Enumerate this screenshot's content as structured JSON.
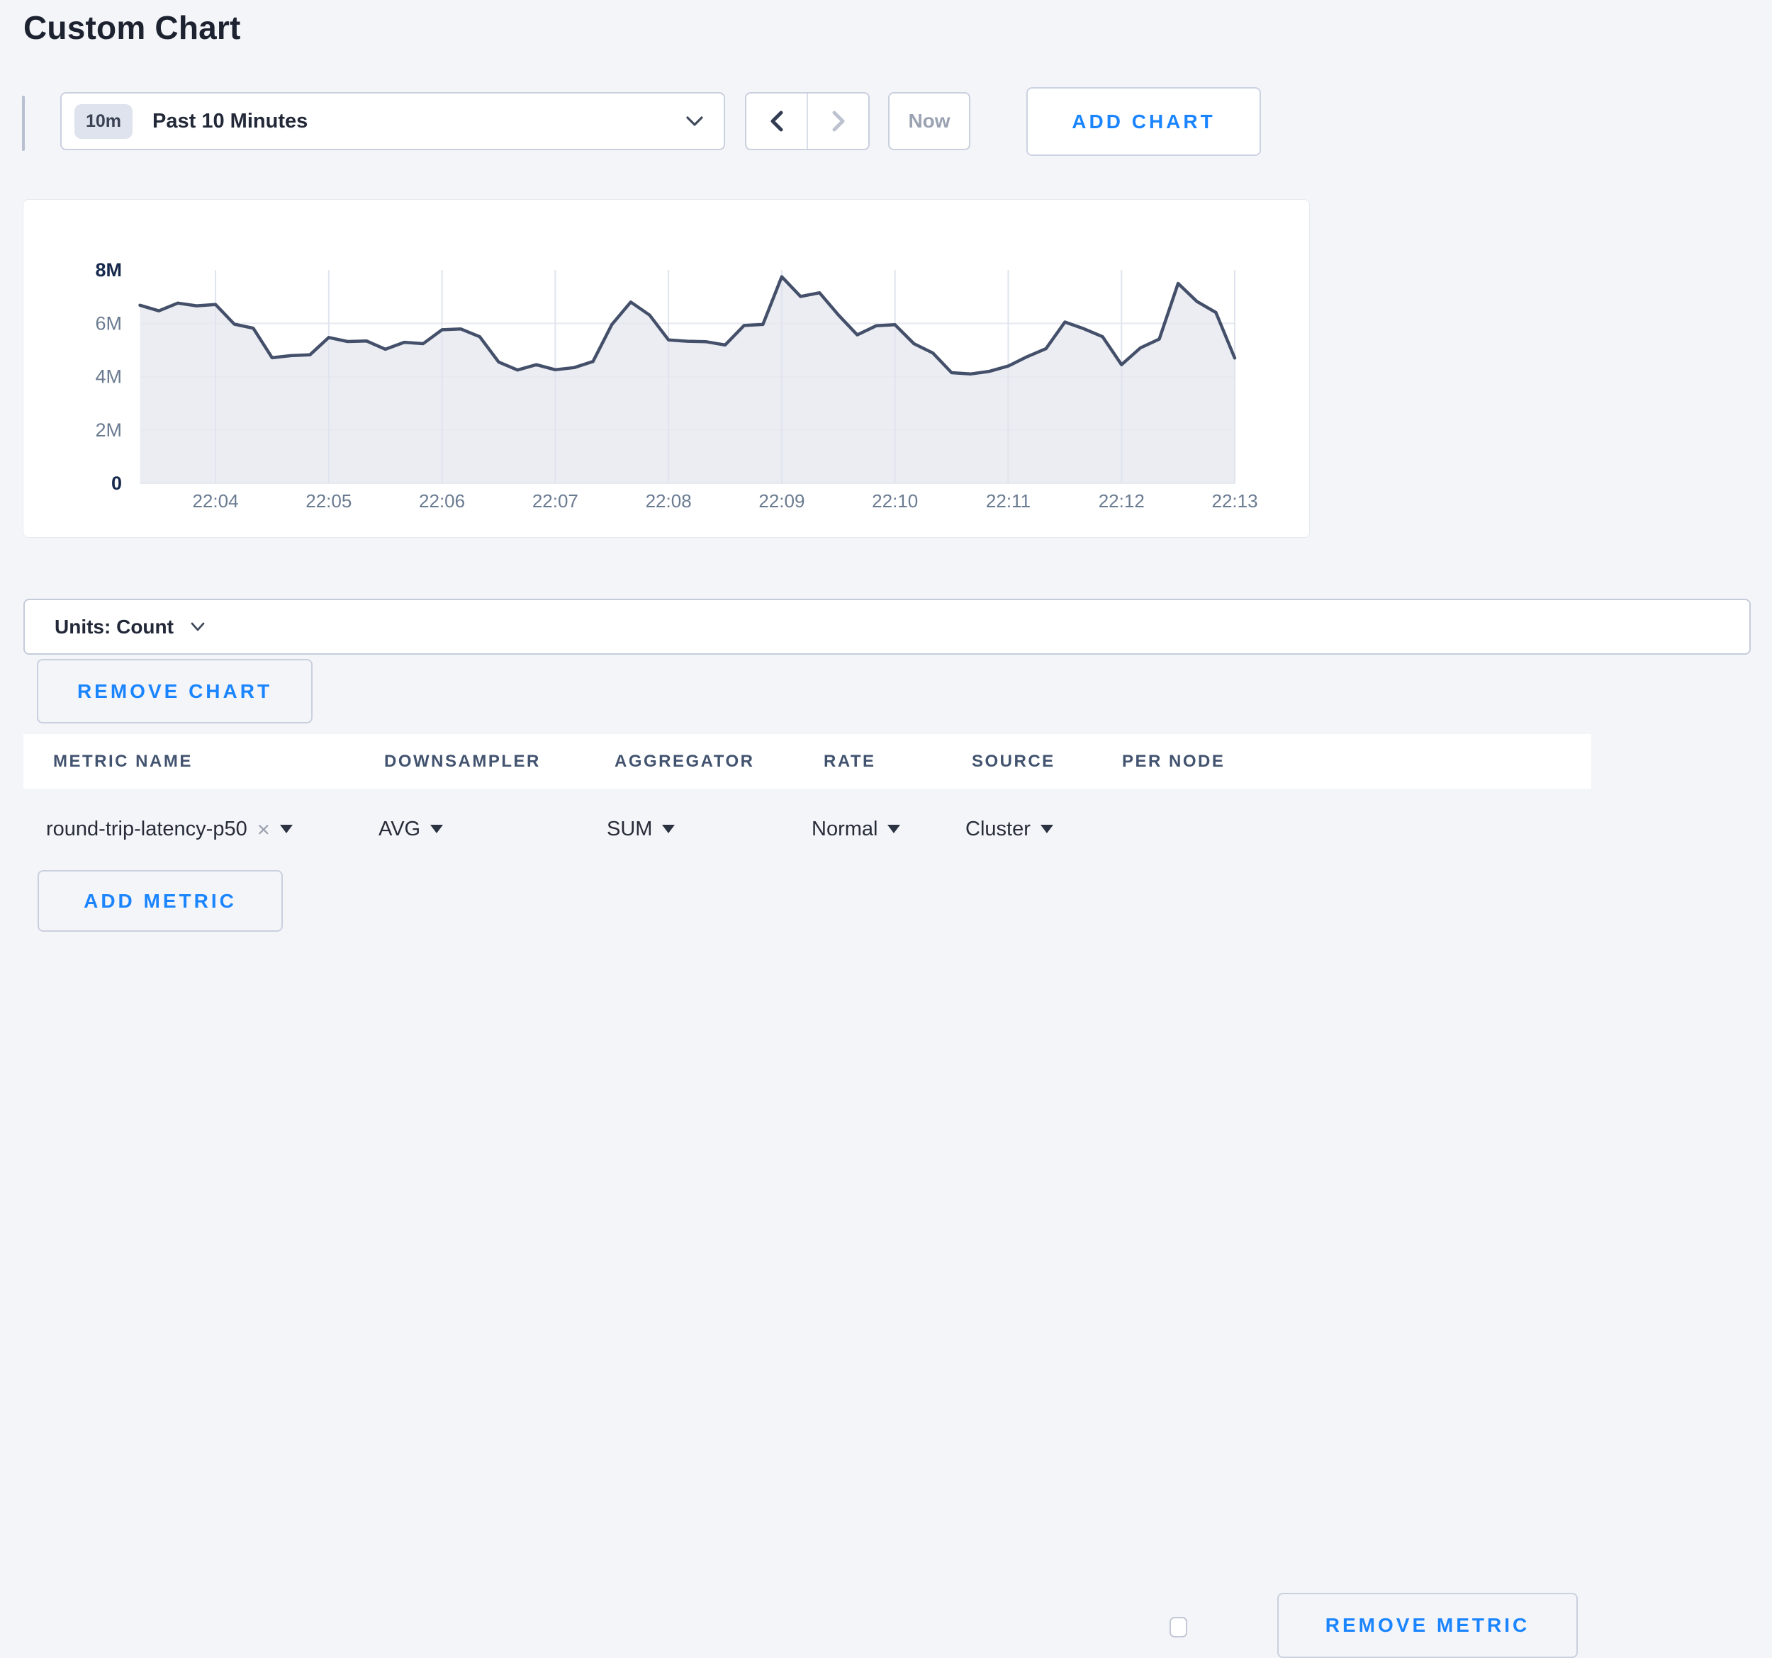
{
  "page": {
    "title": "Custom Chart",
    "background": "#f4f5f9"
  },
  "toolbar": {
    "time_badge": "10m",
    "time_label": "Past 10 Minutes",
    "now_label": "Now",
    "add_chart_label": "ADD CHART"
  },
  "chart_data": {
    "type": "area",
    "title": "",
    "unit": "count",
    "x": [
      "22:03:20",
      "22:03:30",
      "22:03:40",
      "22:03:50",
      "22:04:00",
      "22:04:10",
      "22:04:20",
      "22:04:30",
      "22:04:40",
      "22:04:50",
      "22:05:00",
      "22:05:10",
      "22:05:20",
      "22:05:30",
      "22:05:40",
      "22:05:50",
      "22:06:00",
      "22:06:10",
      "22:06:20",
      "22:06:30",
      "22:06:40",
      "22:06:50",
      "22:07:00",
      "22:07:10",
      "22:07:20",
      "22:07:30",
      "22:07:40",
      "22:07:50",
      "22:08:00",
      "22:08:10",
      "22:08:20",
      "22:08:30",
      "22:08:40",
      "22:08:50",
      "22:09:00",
      "22:09:10",
      "22:09:20",
      "22:09:30",
      "22:09:40",
      "22:09:50",
      "22:10:00",
      "22:10:10",
      "22:10:20",
      "22:10:30",
      "22:10:40",
      "22:10:50",
      "22:11:00",
      "22:11:10",
      "22:11:20",
      "22:11:30",
      "22:11:40",
      "22:11:50",
      "22:12:00",
      "22:12:10",
      "22:12:20",
      "22:12:30",
      "22:12:40",
      "22:12:50",
      "22:13:00"
    ],
    "values_millions": [
      6.68,
      6.47,
      6.76,
      6.66,
      6.71,
      5.97,
      5.82,
      4.71,
      4.79,
      4.82,
      5.47,
      5.32,
      5.34,
      5.03,
      5.29,
      5.24,
      5.76,
      5.79,
      5.5,
      4.55,
      4.25,
      4.45,
      4.26,
      4.34,
      4.57,
      5.96,
      6.8,
      6.31,
      5.38,
      5.33,
      5.31,
      5.19,
      5.92,
      5.96,
      7.75,
      7.01,
      7.15,
      6.32,
      5.57,
      5.91,
      5.95,
      5.24,
      4.89,
      4.15,
      4.1,
      4.2,
      4.4,
      4.75,
      5.05,
      6.05,
      5.8,
      5.5,
      4.45,
      5.08,
      5.41,
      7.5,
      6.82,
      6.41,
      4.7
    ],
    "x_tick_labels": [
      "22:04",
      "22:05",
      "22:06",
      "22:07",
      "22:08",
      "22:09",
      "22:10",
      "22:11",
      "22:12",
      "22:13"
    ],
    "y_ticks": [
      {
        "label": "0",
        "value": 0,
        "bold": true
      },
      {
        "label": "2M",
        "value": 2,
        "bold": false
      },
      {
        "label": "4M",
        "value": 4,
        "bold": false
      },
      {
        "label": "6M",
        "value": 6,
        "bold": false
      },
      {
        "label": "8M",
        "value": 8,
        "bold": true
      }
    ],
    "ylim_millions": [
      0,
      8
    ],
    "grid": true,
    "legend": "none",
    "colors": {
      "line": "#44506a",
      "fill": "#ebedf3",
      "grid_h": "#e6e9f0",
      "grid_v": "#e0e4ee",
      "tick_bold": "#16294c",
      "tick": "#6a7b91"
    }
  },
  "units_bar": {
    "label": "Units: Count"
  },
  "chart_actions": {
    "remove_chart_label": "REMOVE CHART"
  },
  "metrics_table": {
    "headers": [
      "METRIC NAME",
      "DOWNSAMPLER",
      "AGGREGATOR",
      "RATE",
      "SOURCE",
      "PER NODE"
    ],
    "rows": [
      {
        "metric_name": "round-trip-latency-p50",
        "downsampler": "AVG",
        "aggregator": "SUM",
        "rate": "Normal",
        "source": "Cluster",
        "per_node_checked": false,
        "remove_label": "REMOVE METRIC"
      }
    ],
    "add_metric_label": "ADD METRIC"
  },
  "icons": {
    "remove_tag": "×"
  },
  "colors": {
    "accent_blue": "#1b85ff",
    "page_bg": "#f4f5f9",
    "control_border": "#c9d0de",
    "text_dark": "#222838",
    "text_slate": "#42536f",
    "text_gray": "#68788e",
    "disabled_text": "#9aa2b2"
  }
}
